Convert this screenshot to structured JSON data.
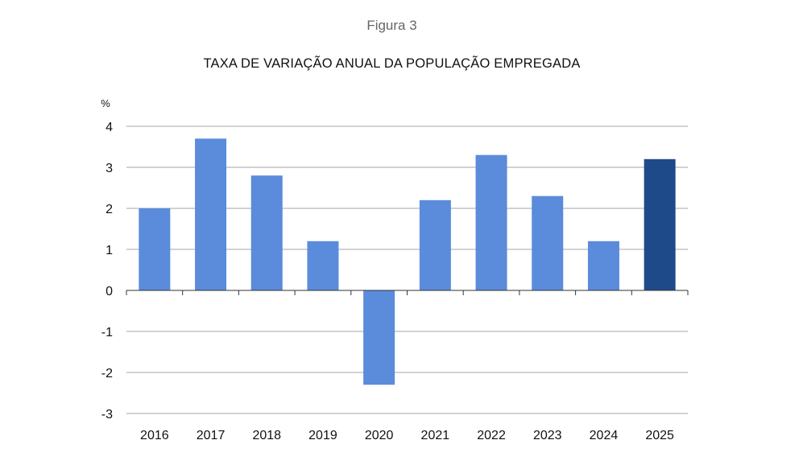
{
  "figure_label": "Figura 3",
  "chart_data": {
    "type": "bar",
    "title": "TAXA DE VARIAÇÃO ANUAL DA POPULAÇÃO EMPREGADA",
    "ylabel": "%",
    "xlabel": "",
    "categories": [
      "2016",
      "2017",
      "2018",
      "2019",
      "2020",
      "2021",
      "2022",
      "2023",
      "2024",
      "2025"
    ],
    "values": [
      2.0,
      3.7,
      2.8,
      1.2,
      -2.3,
      2.2,
      3.3,
      2.3,
      1.2,
      3.2
    ],
    "ylim": [
      -3,
      4
    ],
    "yticks": [
      4,
      3,
      2,
      1,
      0,
      -1,
      -2,
      -3
    ],
    "grid": true,
    "colors": {
      "bar": "#5B8BDB",
      "highlight": "#1F4A8A",
      "grid": "#A6A6A6"
    },
    "highlight_category": "2025"
  }
}
